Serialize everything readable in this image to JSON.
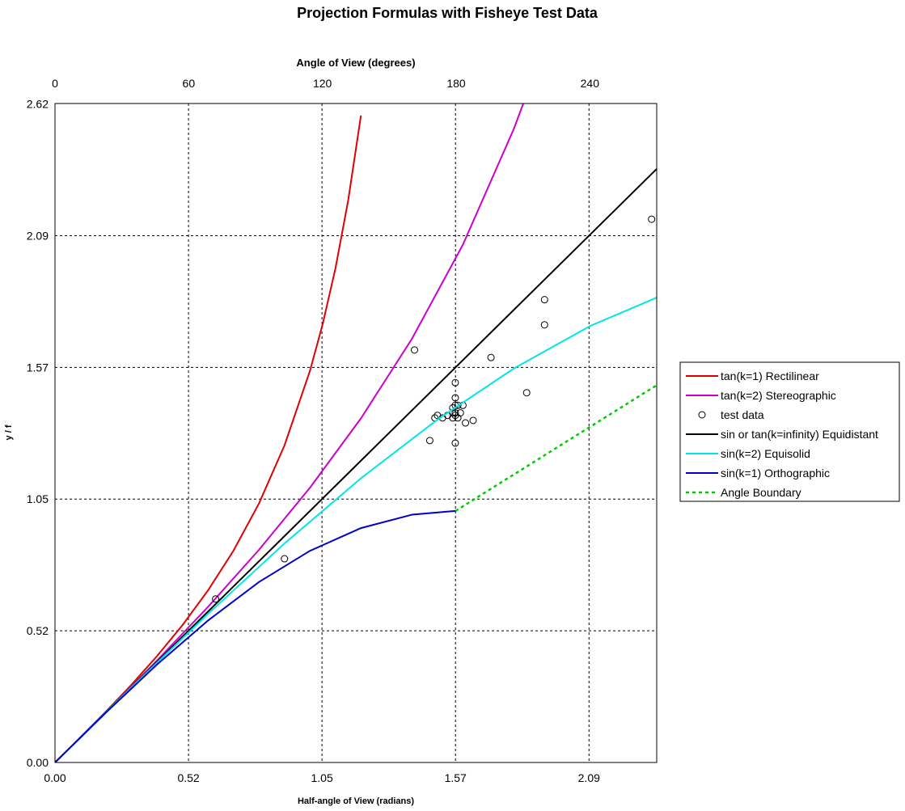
{
  "chart_data": {
    "type": "line",
    "title": "Projection Formulas with Fisheye Test Data",
    "xlabel": "Half-angle of View (radians)",
    "ylabel": "y / f",
    "x2label": "Angle of View (degrees)",
    "xlim": [
      0,
      2.36
    ],
    "ylim": [
      0,
      2.62
    ],
    "x2lim": [
      0,
      270
    ],
    "x_ticks": [
      0,
      0.5236,
      1.0472,
      1.5708,
      2.0944
    ],
    "x_tick_labels": [
      "0.00",
      "0.52",
      "1.05",
      "1.57",
      "2.09"
    ],
    "y_ticks": [
      0,
      0.5236,
      1.0472,
      1.5708,
      2.0944,
      2.618
    ],
    "y_tick_labels": [
      "0.00",
      "0.52",
      "1.05",
      "1.57",
      "2.09",
      "2.62"
    ],
    "x2_ticks": [
      0,
      60,
      120,
      180,
      240
    ],
    "x2_tick_labels": [
      "0",
      "60",
      "120",
      "180",
      "240"
    ],
    "grid": true,
    "legend_position": "right",
    "series": [
      {
        "name": "tan(k=1) Rectilinear",
        "color": "#e00000",
        "style": "solid",
        "x": [
          0,
          0.1,
          0.2,
          0.3,
          0.4,
          0.5,
          0.6,
          0.7,
          0.8,
          0.9,
          1.0,
          1.05,
          1.1,
          1.15,
          1.2
        ],
        "y": [
          0,
          0.1003,
          0.2027,
          0.3093,
          0.4228,
          0.5463,
          0.6841,
          0.8423,
          1.0296,
          1.2602,
          1.5574,
          1.7433,
          1.9648,
          2.2345,
          2.5722
        ]
      },
      {
        "name": "tan(k=2) Stereographic",
        "color": "#cc00cc",
        "style": "solid",
        "x": [
          0,
          0.2,
          0.4,
          0.6,
          0.8,
          1.0,
          1.2,
          1.4,
          1.6,
          1.8,
          1.85
        ],
        "y": [
          0,
          0.2007,
          0.4054,
          0.6186,
          0.8456,
          1.0926,
          1.3683,
          1.6848,
          2.0591,
          2.5204,
          2.656
        ]
      },
      {
        "name": "test data",
        "color": "#000000",
        "style": "marker",
        "x": [
          0.63,
          0.9,
          1.41,
          1.47,
          1.49,
          1.5,
          1.52,
          1.54,
          1.56,
          1.56,
          1.56,
          1.57,
          1.57,
          1.57,
          1.57,
          1.57,
          1.57,
          1.58,
          1.58,
          1.59,
          1.6,
          1.61,
          1.64,
          1.71,
          1.85,
          1.92,
          1.92,
          2.34
        ],
        "y": [
          0.65,
          0.81,
          1.64,
          1.28,
          1.37,
          1.38,
          1.37,
          1.38,
          1.41,
          1.39,
          1.37,
          1.51,
          1.45,
          1.42,
          1.39,
          1.38,
          1.27,
          1.42,
          1.37,
          1.39,
          1.42,
          1.35,
          1.36,
          1.61,
          1.47,
          1.84,
          1.74,
          2.16
        ]
      },
      {
        "name": "sin or tan(k=infinity) Equidistant",
        "color": "#000000",
        "style": "solid",
        "x": [
          0,
          2.36
        ],
        "y": [
          0,
          2.36
        ]
      },
      {
        "name": "sin(k=2) Equisolid",
        "color": "#00e6e6",
        "style": "solid",
        "x": [
          0,
          0.3,
          0.6,
          0.9,
          1.2,
          1.5,
          1.8,
          2.1,
          2.36
        ],
        "y": [
          0,
          0.2989,
          0.591,
          0.8704,
          1.13,
          1.3633,
          1.5667,
          1.7358,
          1.8482
        ]
      },
      {
        "name": "sin(k=1) Orthographic",
        "color": "#0000cc",
        "style": "solid",
        "x": [
          0,
          0.2,
          0.4,
          0.6,
          0.8,
          1.0,
          1.2,
          1.4,
          1.5708
        ],
        "y": [
          0,
          0.1987,
          0.3894,
          0.5646,
          0.7174,
          0.8415,
          0.932,
          0.9854,
          1.0
        ]
      },
      {
        "name": "Angle Boundary",
        "color": "#00cc00",
        "style": "dotted",
        "x": [
          1.5708,
          2.36
        ],
        "y": [
          1.0,
          1.5
        ]
      }
    ]
  }
}
